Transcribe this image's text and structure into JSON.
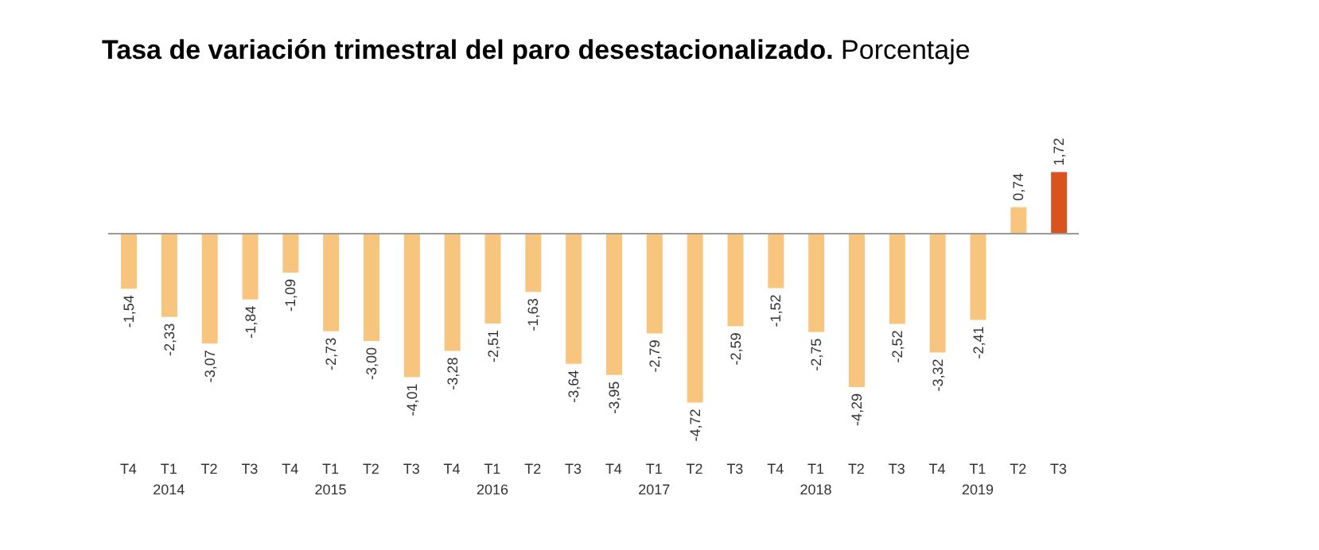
{
  "chart_data": {
    "type": "bar",
    "title": "Tasa de variación trimestral del paro desestacionalizado.",
    "subtitle": "Porcentaje",
    "categories": [
      "T4",
      "T1\n2014",
      "T2",
      "T3",
      "T4",
      "T1\n2015",
      "T2",
      "T3",
      "T4",
      "T1\n2016",
      "T2",
      "T3",
      "T4",
      "T1\n2017",
      "T2",
      "T3",
      "T4",
      "T1\n2018",
      "T2",
      "T3",
      "T4",
      "T1\n2019",
      "T2",
      "T3"
    ],
    "values": [
      -1.54,
      -2.33,
      -3.07,
      -1.84,
      -1.09,
      -2.73,
      -3.0,
      -4.01,
      -3.28,
      -2.51,
      -1.63,
      -3.64,
      -3.95,
      -2.79,
      -4.72,
      -2.59,
      -1.52,
      -2.75,
      -4.29,
      -2.52,
      -3.32,
      -2.41,
      0.74,
      1.72
    ],
    "value_labels": [
      "-1,54",
      "-2,33",
      "-3,07",
      "-1,84",
      "-1,09",
      "-2,73",
      "-3,00",
      "-4,01",
      "-3,28",
      "-2,51",
      "-1,63",
      "-3,64",
      "-3,95",
      "-2,79",
      "-4,72",
      "-2,59",
      "-1,52",
      "-2,75",
      "-4,29",
      "-2,52",
      "-3,32",
      "-2,41",
      "0,74",
      "1,72"
    ],
    "colors": [
      "#f8c57f",
      "#f8c57f",
      "#f8c57f",
      "#f8c57f",
      "#f8c57f",
      "#f8c57f",
      "#f8c57f",
      "#f8c57f",
      "#f8c57f",
      "#f8c57f",
      "#f8c57f",
      "#f8c57f",
      "#f8c57f",
      "#f8c57f",
      "#f8c57f",
      "#f8c57f",
      "#f8c57f",
      "#f8c57f",
      "#f8c57f",
      "#f8c57f",
      "#f8c57f",
      "#f8c57f",
      "#f8c57f",
      "#d9531e"
    ],
    "grid": false,
    "legend": false
  }
}
